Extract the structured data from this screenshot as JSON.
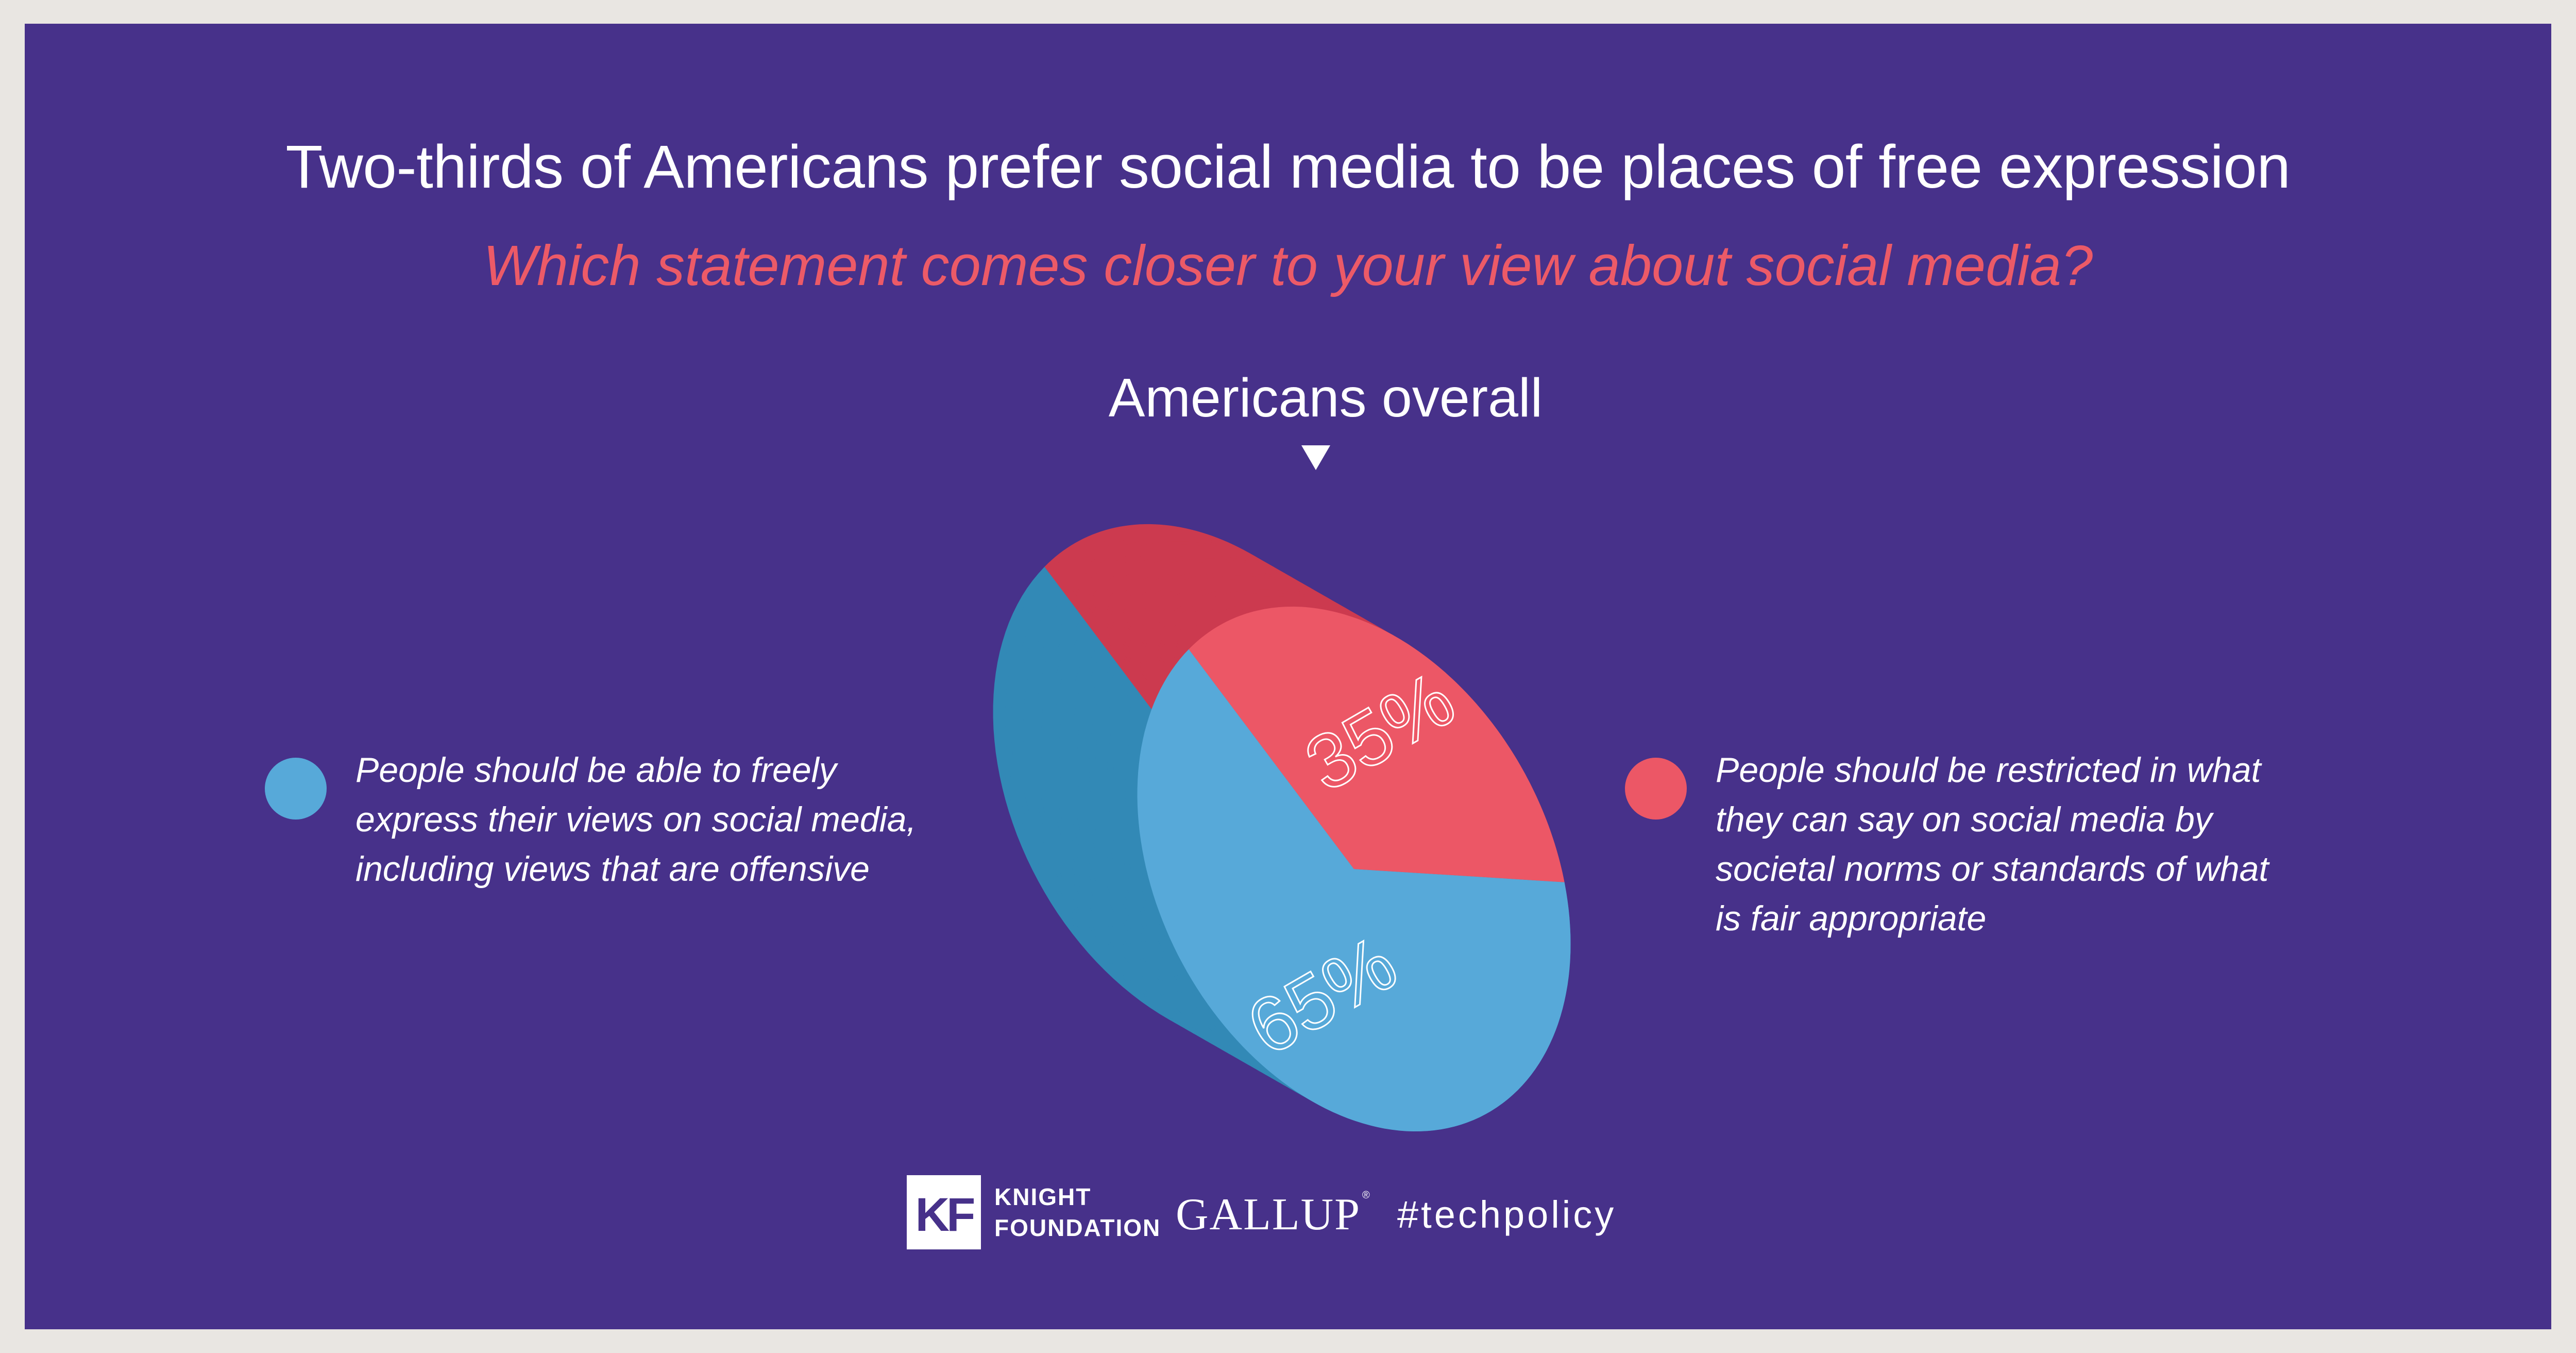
{
  "title": "Two-thirds of Americans prefer social media to be places of free expression",
  "subtitle": "Which statement comes closer to your view about social media?",
  "colors": {
    "background": "#47318a",
    "accent": "#ec5a67",
    "free_expression_top": "#57a9d9",
    "free_expression_side": "#3289b6",
    "restricted_top": "#ec5766",
    "restricted_side": "#cc3a4f"
  },
  "chart_data": {
    "type": "pie",
    "title": "Americans overall",
    "slices": [
      {
        "label": "People should be able to freely express their views on social media, including views that are offensive",
        "value": 65,
        "display": "65%",
        "color": "#57a9d9"
      },
      {
        "label": "People should be restricted in what they can say on social media by societal norms or standards of what is fair appropriate",
        "value": 35,
        "display": "35%",
        "color": "#ec5766"
      }
    ],
    "legend_placement": "left-and-right"
  },
  "legend": {
    "left_text": "People should be able to freely\nexpress their views on social media,\nincluding views that are offensive",
    "right_text": "People should be restricted in what\nthey can say on social media by\nsocietal norms or standards of what\nis fair appropriate"
  },
  "footer": {
    "kf_monogram": "KF",
    "kf_name": "KNIGHT\nFOUNDATION",
    "gallup": "GALLUP",
    "gallup_mark": "®",
    "hashtag": "#techpolicy"
  }
}
